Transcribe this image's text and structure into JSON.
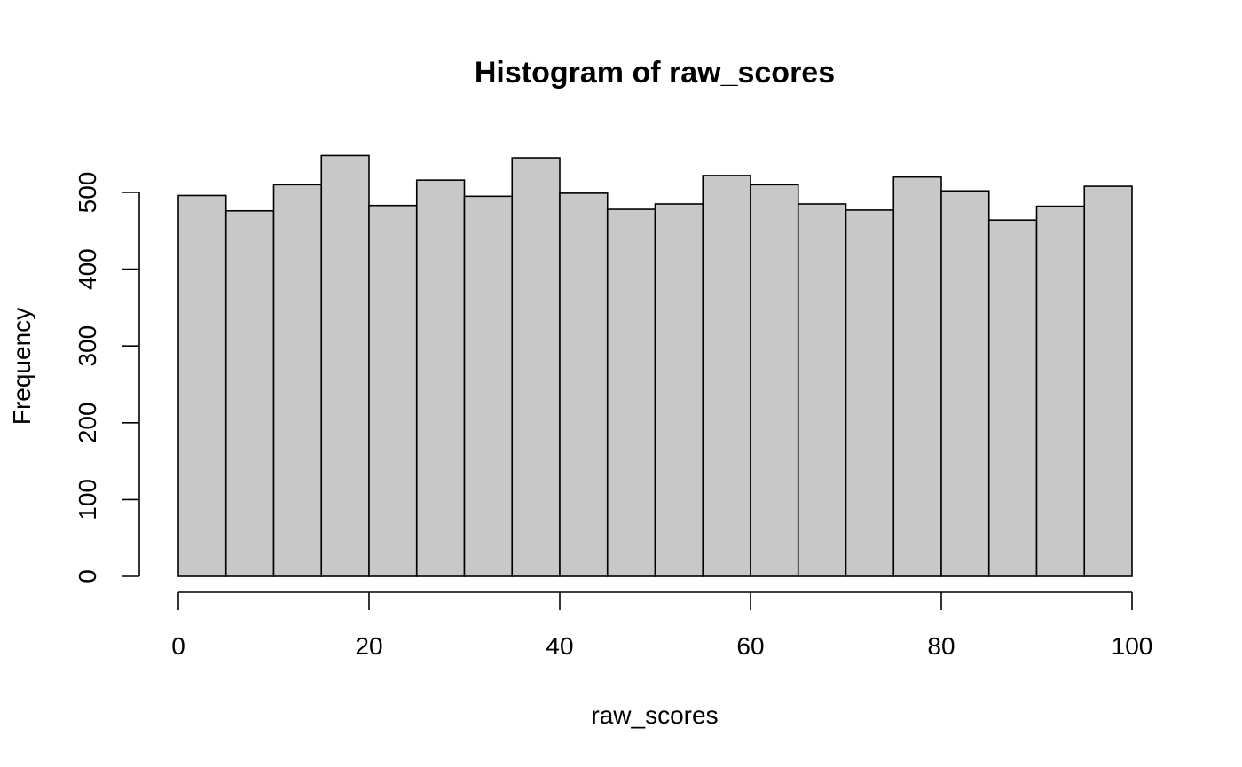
{
  "chart_data": {
    "type": "bar",
    "title": "Histogram of raw_scores",
    "xlabel": "raw_scores",
    "ylabel": "Frequency",
    "bin_edges": [
      0,
      5,
      10,
      15,
      20,
      25,
      30,
      35,
      40,
      45,
      50,
      55,
      60,
      65,
      70,
      75,
      80,
      85,
      90,
      95,
      100
    ],
    "values": [
      496,
      476,
      510,
      548,
      483,
      516,
      495,
      545,
      499,
      478,
      485,
      522,
      510,
      485,
      477,
      520,
      502,
      464,
      482,
      508
    ],
    "xlim": [
      0,
      100
    ],
    "ylim": [
      0,
      500
    ],
    "x_ticks": [
      "0",
      "20",
      "40",
      "60",
      "80",
      "100"
    ],
    "y_ticks": [
      "0",
      "100",
      "200",
      "300",
      "400",
      "500"
    ],
    "bar_fill": "#c8c8c8",
    "bar_stroke": "#000000",
    "grid": false,
    "legend": "none"
  }
}
